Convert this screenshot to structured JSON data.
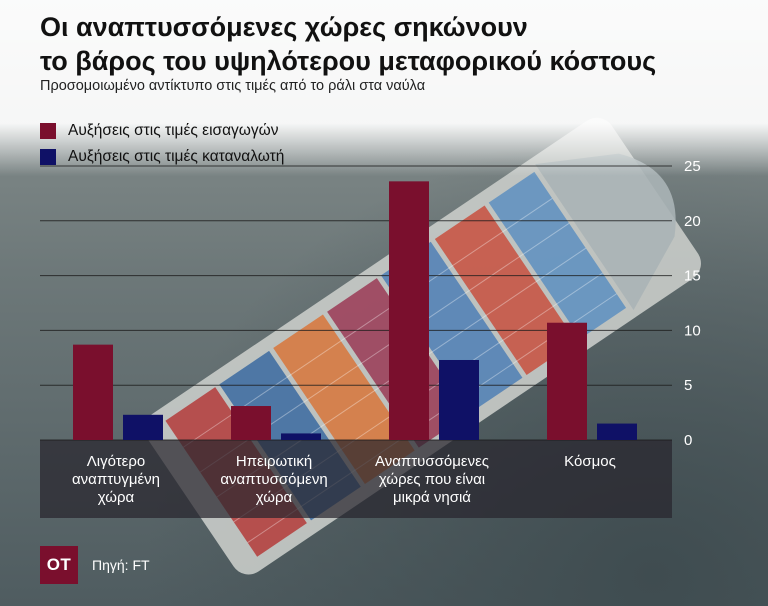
{
  "title_line1": "Οι αναπτυσσόμενες χώρες σηκώνουν",
  "title_line2": "το βάρος του υψηλότερου μεταφορικού κόστους",
  "subtitle": "Προσομοιωμένο αντίκτυπο στις τιμές από το ράλι στα ναύλα",
  "source": "Πηγή: FT",
  "logo_text": "ΟΤ",
  "colors": {
    "import": "#7a0f2d",
    "consumer": "#0f1166",
    "logo": "#7a0f2d"
  },
  "chart_data": {
    "type": "bar",
    "categories": [
      [
        "Λιγότερο",
        "αναπτυγμένη",
        "χώρα"
      ],
      [
        "Ηπειρωτική",
        "αναπτυσσόμενη",
        "χώρα"
      ],
      [
        "Αναπτυσσόμενες",
        "χώρες που είναι",
        "μικρά νησιά"
      ],
      [
        "Κόσμος"
      ]
    ],
    "series": [
      {
        "name": "Αυξήσεις στις τιμές εισαγωγών",
        "values": [
          8.7,
          3.1,
          23.6,
          10.7
        ]
      },
      {
        "name": "Αυξήσεις στις τιμές καταναλωτή",
        "values": [
          2.3,
          0.6,
          7.3,
          1.5
        ]
      }
    ],
    "yticks": [
      "0",
      "5",
      "10",
      "15",
      "20",
      "25"
    ],
    "ylim": [
      0,
      25
    ],
    "grid": true,
    "legend_position": "top-left"
  }
}
